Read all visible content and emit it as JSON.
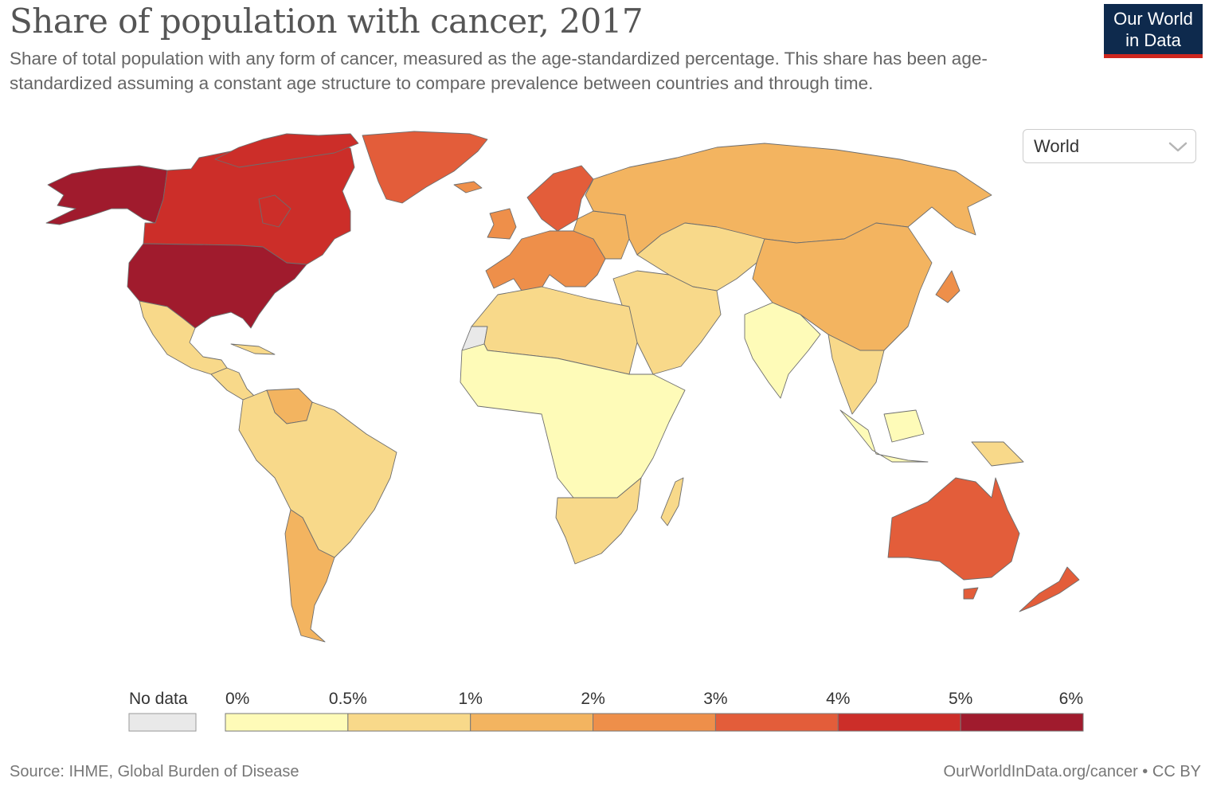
{
  "title": "Share of population with cancer, 2017",
  "subtitle": "Share of total population with any form of cancer, measured as the age-standardized percentage. This share has been age-standardized assuming a constant age structure to compare prevalence between countries and through time.",
  "logo": {
    "line1": "Our World",
    "line2": "in Data"
  },
  "region_selector": {
    "selected": "World"
  },
  "legend": {
    "no_data_label": "No data",
    "ticks": [
      "0%",
      "0.5%",
      "1%",
      "2%",
      "3%",
      "4%",
      "5%",
      "6%"
    ],
    "colors": [
      "#fefbb8",
      "#f8d98a",
      "#f3b460",
      "#ee8f4a",
      "#e35d3a",
      "#cc2e29",
      "#a01b2d"
    ],
    "no_data_color": "#e9e9e9"
  },
  "footer": {
    "source": "Source: IHME, Global Burden of Disease",
    "url": "OurWorldInData.org/cancer",
    "separator": "•",
    "license": "CC BY"
  },
  "chart_data": {
    "type": "choropleth",
    "year": 2017,
    "unit": "%",
    "bins": [
      "0%",
      "0.5%",
      "1%",
      "2%",
      "3%",
      "4%",
      "5%",
      "6%"
    ],
    "regions": [
      {
        "name": "United States",
        "bin": 6
      },
      {
        "name": "Alaska",
        "bin": 6
      },
      {
        "name": "Canada",
        "bin": 5
      },
      {
        "name": "Greenland",
        "bin": 4
      },
      {
        "name": "Australia",
        "bin": 4
      },
      {
        "name": "New Zealand",
        "bin": 4
      },
      {
        "name": "Norway",
        "bin": 4
      },
      {
        "name": "Western Europe",
        "bin": 3
      },
      {
        "name": "Russia",
        "bin": 2
      },
      {
        "name": "China",
        "bin": 2
      },
      {
        "name": "Japan",
        "bin": 3
      },
      {
        "name": "Argentina",
        "bin": 2
      },
      {
        "name": "Venezuela",
        "bin": 2
      },
      {
        "name": "South America",
        "bin": 1
      },
      {
        "name": "Mexico",
        "bin": 1
      },
      {
        "name": "North Africa",
        "bin": 1
      },
      {
        "name": "Middle East",
        "bin": 1
      },
      {
        "name": "Central Asia",
        "bin": 1
      },
      {
        "name": "Southern Africa",
        "bin": 1
      },
      {
        "name": "Sub-Saharan Africa",
        "bin": 0
      },
      {
        "name": "India",
        "bin": 0
      },
      {
        "name": "Southeast Asia",
        "bin": 1
      },
      {
        "name": "Indonesia",
        "bin": 0
      },
      {
        "name": "Western Sahara",
        "bin": -1
      }
    ]
  }
}
